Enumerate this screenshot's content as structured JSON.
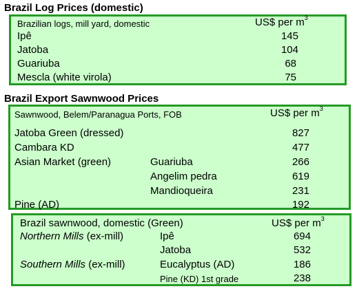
{
  "log_prices": {
    "title": "Brazil Log Prices (domestic)",
    "header_label": "Brazilian logs, mill yard, domestic",
    "unit_text": "US$ per m",
    "unit_sup": "3",
    "rows": [
      {
        "species": "Ipê",
        "price": "145"
      },
      {
        "species": "Jatoba",
        "price": "104"
      },
      {
        "species": "Guariuba",
        "price": "68"
      },
      {
        "species": "Mescla (white virola)",
        "price": "75"
      }
    ]
  },
  "export_sawnwood": {
    "title": "Brazil Export Sawnwood Prices",
    "header_label": "Sawnwood, Belem/Paranagua Ports, FOB",
    "unit_text": "US$ per m",
    "unit_sup": "3",
    "rows": [
      {
        "label": "Jatoba Green (dressed)",
        "sub": "",
        "price": "827"
      },
      {
        "label": "Cambara KD",
        "sub": "",
        "price": "477"
      },
      {
        "label": "Asian Market (green)",
        "sub": "Guariuba",
        "price": "266"
      },
      {
        "label": "",
        "sub": "Angelim pedra",
        "price": "619"
      },
      {
        "label": "",
        "sub": "Mandioqueira",
        "price": "231"
      },
      {
        "label": "Pine (AD)",
        "sub": "",
        "price": "192"
      }
    ]
  },
  "domestic_sawnwood": {
    "header_label": "Brazil sawnwood, domestic (Green)",
    "unit_text": "US$ per m",
    "unit_sup": "3",
    "rows": [
      {
        "region": "Northern Mills",
        "region_note": " (ex-mill)",
        "species": "Ipê",
        "price": "694"
      },
      {
        "region": "",
        "region_note": "",
        "species": "Jatoba",
        "price": "532"
      },
      {
        "region": "Southern Mills",
        "region_note": " (ex-mill)",
        "species": "Eucalyptus (AD)",
        "price": "186"
      },
      {
        "region": "",
        "region_note": "",
        "species": "Pine (KD) 1st grade",
        "price": "238"
      }
    ]
  },
  "colors": {
    "panel_fill": "#ccffcc",
    "panel_border": "#249a24"
  }
}
